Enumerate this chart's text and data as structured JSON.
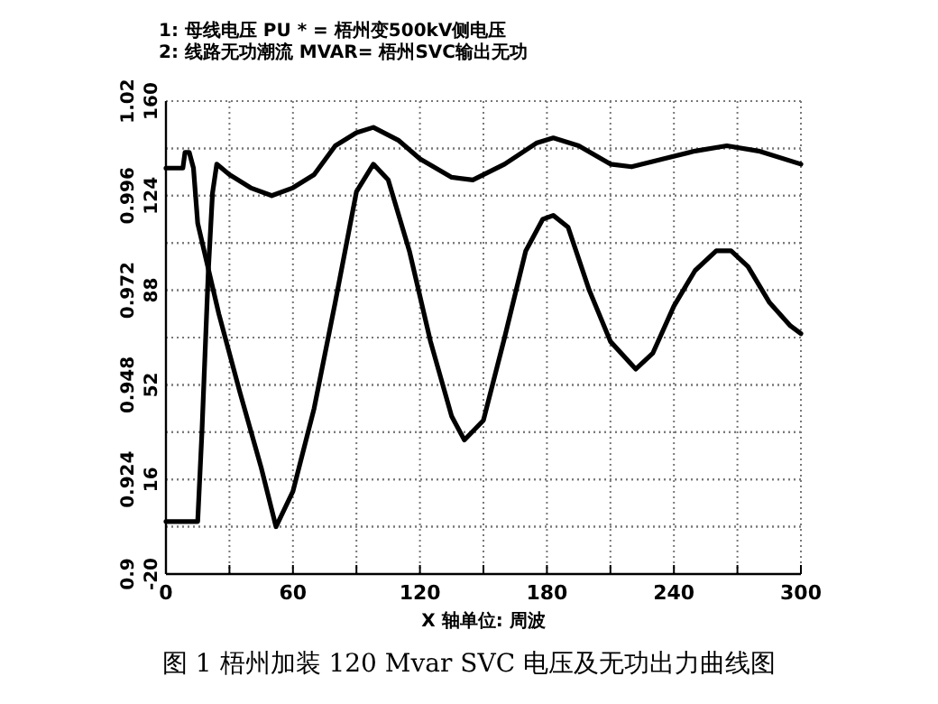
{
  "chart_data": {
    "type": "line",
    "title": "图 1  梧州加装 120 Mvar SVC 电压及无功出力曲线图",
    "xlabel": "X 轴单位: 周波",
    "annotations": [
      "1: 母线电压 PU    * = 梧州变500kV侧电压",
      "2: 线路无功潮流 MVAR= 梧州SVC输出无功"
    ],
    "xlim": [
      0,
      300
    ],
    "xticks": [
      0,
      {
        "value": 30,
        "label": null
      },
      60,
      {
        "value": 90,
        "label": null
      },
      120,
      {
        "value": 150,
        "label": null
      },
      180,
      {
        "value": 210,
        "label": null
      },
      240,
      {
        "value": 270,
        "label": null
      },
      300
    ],
    "ylim": [
      0.9,
      1.02
    ],
    "yticks": [
      0.9,
      {
        "value": 0.912,
        "label": null
      },
      0.924,
      {
        "value": 0.936,
        "label": null
      },
      0.948,
      {
        "value": 0.96,
        "label": null
      },
      0.972,
      {
        "value": 0.984,
        "label": null
      },
      0.996,
      {
        "value": 1.008,
        "label": null
      },
      1.02
    ],
    "y2lim": [
      -20,
      160
    ],
    "y2ticks": [
      -20,
      {
        "value": -2,
        "label": null
      },
      16,
      {
        "value": 34,
        "label": null
      },
      52,
      {
        "value": 70,
        "label": null
      },
      88,
      {
        "value": 106,
        "label": null
      },
      124,
      {
        "value": 142,
        "label": null
      },
      160
    ],
    "grid": true,
    "line_style": "solid",
    "series": [
      {
        "color": "#000000",
        "x": [
          0,
          8,
          9,
          11,
          13,
          15,
          25,
          35,
          45,
          52,
          60,
          70,
          80,
          90,
          98,
          105,
          115,
          125,
          135,
          141,
          150,
          160,
          170,
          178,
          183,
          190,
          200,
          210,
          222,
          230,
          240,
          250,
          260,
          267,
          275,
          285,
          295,
          300
        ],
        "values": [
          1.003,
          1.003,
          1.007,
          1.007,
          1.003,
          0.989,
          0.966,
          0.946,
          0.927,
          0.912,
          0.921,
          0.942,
          0.969,
          0.997,
          1.004,
          1.0,
          0.982,
          0.959,
          0.94,
          0.934,
          0.939,
          0.96,
          0.982,
          0.99,
          0.991,
          0.988,
          0.972,
          0.959,
          0.952,
          0.956,
          0.968,
          0.977,
          0.982,
          0.982,
          0.978,
          0.969,
          0.963,
          0.961
        ]
      },
      {
        "color": "#000000",
        "axis": "y2",
        "x": [
          0,
          15,
          17,
          20,
          22,
          24,
          30,
          40,
          50,
          60,
          70,
          80,
          90,
          98,
          110,
          120,
          135,
          145,
          160,
          175,
          183,
          195,
          210,
          220,
          235,
          250,
          265,
          280,
          300
        ],
        "values": [
          0,
          0,
          34,
          95,
          125,
          136,
          132,
          127,
          124,
          127,
          132,
          143,
          148,
          150,
          145,
          138,
          131,
          130,
          136,
          144,
          146,
          143,
          136,
          135,
          138,
          141,
          143,
          141,
          136
        ]
      }
    ]
  }
}
